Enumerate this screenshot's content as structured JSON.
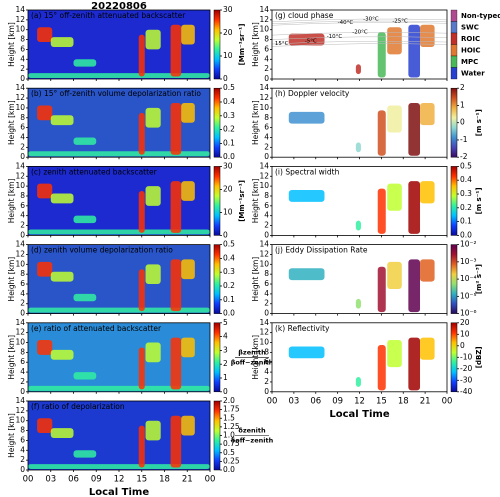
{
  "figure_title": "20220806",
  "chart_data": [
    {
      "type": "heatmap",
      "label": "(a) 15° off-zenith attenuated backscatter",
      "ylabel": "Height [km]",
      "ylim": [
        0,
        14
      ],
      "yticks": [
        0,
        2,
        4,
        6,
        8,
        10,
        12,
        14
      ],
      "xlim": [
        0,
        24
      ],
      "xticks": [
        0,
        3,
        6,
        9,
        12,
        15,
        18,
        21,
        24
      ],
      "background": "#1c2ad0",
      "colorbar": {
        "lim": [
          0,
          30
        ],
        "ticks": [
          0,
          10,
          20,
          30
        ],
        "label": "[Mm⁻¹sr⁻¹]",
        "colors": [
          "#0a0a9a",
          "#1040ff",
          "#00c0ff",
          "#30f0a0",
          "#c0ff30",
          "#ffc000",
          "#ff3000",
          "#a00000"
        ]
      }
    },
    {
      "type": "heatmap",
      "label": "(b) 15° off-zenith volume depolarization ratio",
      "ylabel": "Height [km]",
      "ylim": [
        0,
        14
      ],
      "yticks": [
        0,
        2,
        4,
        6,
        8,
        10,
        12,
        14
      ],
      "xlim": [
        0,
        24
      ],
      "xticks": [
        0,
        3,
        6,
        9,
        12,
        15,
        18,
        21,
        24
      ],
      "background": "#2a55c8",
      "colorbar": {
        "lim": [
          0,
          0.5
        ],
        "ticks": [
          {
            "value": 0,
            "label": "0.0"
          },
          0.1,
          0.2,
          0.3,
          0.4,
          0.5
        ],
        "colors": [
          "#0a0a9a",
          "#1040ff",
          "#00c0ff",
          "#30f0a0",
          "#c0ff30",
          "#ffc000",
          "#ff3000",
          "#a00000"
        ]
      }
    },
    {
      "type": "heatmap",
      "label": "(c) zenith attenuated backscatter",
      "ylabel": "Height [km]",
      "ylim": [
        0,
        14
      ],
      "yticks": [
        0,
        2,
        4,
        6,
        8,
        10,
        12,
        14
      ],
      "xlim": [
        0,
        24
      ],
      "xticks": [
        0,
        3,
        6,
        9,
        12,
        15,
        18,
        21,
        24
      ],
      "background": "#1c2ad0",
      "colorbar": {
        "lim": [
          0,
          30
        ],
        "ticks": [
          0,
          10,
          20,
          30
        ],
        "label": "[Mm⁻¹sr⁻¹]",
        "colors": [
          "#0a0a9a",
          "#1040ff",
          "#00c0ff",
          "#30f0a0",
          "#c0ff30",
          "#ffc000",
          "#ff3000",
          "#a00000"
        ]
      }
    },
    {
      "type": "heatmap",
      "label": "(d) zenith volume depolarization ratio",
      "ylabel": "Height [km]",
      "ylim": [
        0,
        14
      ],
      "yticks": [
        0,
        2,
        4,
        6,
        8,
        10,
        12,
        14
      ],
      "xlim": [
        0,
        24
      ],
      "xticks": [
        0,
        3,
        6,
        9,
        12,
        15,
        18,
        21,
        24
      ],
      "background": "#2a55c8",
      "colorbar": {
        "lim": [
          0,
          0.5
        ],
        "ticks": [
          {
            "value": 0,
            "label": "0.0"
          },
          0.1,
          0.2,
          0.3,
          0.4,
          0.5
        ],
        "colors": [
          "#0a0a9a",
          "#1040ff",
          "#00c0ff",
          "#30f0a0",
          "#c0ff30",
          "#ffc000",
          "#ff3000",
          "#a00000"
        ]
      }
    },
    {
      "type": "heatmap",
      "label": "(e) ratio of attenuated backscatter",
      "ylabel": "Height [km]",
      "ylim": [
        0,
        14
      ],
      "yticks": [
        0,
        2,
        4,
        6,
        8,
        10,
        12,
        14
      ],
      "xlim": [
        0,
        24
      ],
      "xticks": [
        0,
        3,
        6,
        9,
        12,
        15,
        18,
        21,
        24
      ],
      "background": "#2a8cd8",
      "colorbar": {
        "lim": [
          0,
          5
        ],
        "ticks": [
          0,
          1,
          2,
          3,
          4,
          5
        ],
        "label_num": "βzenith",
        "label_den": "βoff−zenith",
        "colors": [
          "#0a0a9a",
          "#1040ff",
          "#00c0ff",
          "#30f0a0",
          "#c0ff30",
          "#ffc000",
          "#ff3000",
          "#a00000"
        ]
      }
    },
    {
      "type": "heatmap",
      "label": "(f) ratio of depolarization",
      "ylabel": "Height [km]",
      "ylim": [
        0,
        14
      ],
      "yticks": [
        0,
        2,
        4,
        6,
        8,
        10,
        12,
        14
      ],
      "xlim": [
        0,
        24
      ],
      "xlabel": "Local Time",
      "background": "#1c3ad0",
      "xticks": [
        {
          "value": 0,
          "label": "00"
        },
        {
          "value": 3,
          "label": "03"
        },
        {
          "value": 6,
          "label": "06"
        },
        {
          "value": 9,
          "label": "09"
        },
        12,
        15,
        18,
        21,
        {
          "value": 24,
          "label": "00"
        }
      ],
      "colorbar": {
        "lim": [
          0,
          2
        ],
        "ticks": [
          {
            "value": 0,
            "label": "0.0"
          },
          0.25,
          {
            "value": 0.5,
            "label": "0.5"
          },
          0.75,
          {
            "value": 1,
            "label": "1.0"
          },
          1.25,
          1.5,
          1.75,
          {
            "value": 2,
            "label": "2.0"
          }
        ],
        "label_num": "δzenith",
        "label_den": "δoff−zenith",
        "colors": [
          "#0a0a9a",
          "#1040ff",
          "#00c0ff",
          "#30f0a0",
          "#c0ff30",
          "#ffc000",
          "#ff3000",
          "#a00000"
        ]
      }
    },
    {
      "type": "heatmap",
      "label": "(g) cloud phase",
      "ylabel": "Height [km]",
      "ylim": [
        0,
        14
      ],
      "yticks": [
        0,
        2,
        4,
        6,
        8,
        10,
        12,
        14
      ],
      "xlim": [
        0,
        24
      ],
      "xticks": [
        0,
        3,
        6,
        9,
        12,
        15,
        18,
        21,
        24
      ],
      "background": "#ffffff",
      "annotations": [
        "-40°C",
        "-30°C",
        "-25°C",
        "-20°C",
        "-10°C",
        "-5°C",
        "15°C"
      ],
      "categories": [
        {
          "name": "Non-typed",
          "color": "#b04a90"
        },
        {
          "name": "SWC",
          "color": "#5878c8"
        },
        {
          "name": "ROIC",
          "color": "#c03028"
        },
        {
          "name": "HOIC",
          "color": "#e07830"
        },
        {
          "name": "MPC",
          "color": "#48b858"
        },
        {
          "name": "Water",
          "color": "#2840d0"
        }
      ]
    },
    {
      "type": "heatmap",
      "label": "(h) Doppler velocity",
      "ylabel": "Height [km]",
      "ylim": [
        0,
        14
      ],
      "yticks": [
        0,
        2,
        4,
        6,
        8,
        10,
        12,
        14
      ],
      "xlim": [
        0,
        24
      ],
      "xticks": [
        0,
        3,
        6,
        9,
        12,
        15,
        18,
        21,
        24
      ],
      "background": "#ffffff",
      "colorbar": {
        "lim": [
          -2,
          2
        ],
        "ticks": [
          -2,
          -1,
          0,
          1,
          2
        ],
        "label": "[m s⁻¹]",
        "colors": [
          "#3a0a64",
          "#4848b8",
          "#4090d0",
          "#90d8d0",
          "#f0f0a0",
          "#f0b040",
          "#d05020",
          "#801010"
        ]
      }
    },
    {
      "type": "heatmap",
      "label": "(i) Spectral width",
      "ylabel": "Height [km]",
      "ylim": [
        0,
        14
      ],
      "yticks": [
        0,
        2,
        4,
        6,
        8,
        10,
        12,
        14
      ],
      "xlim": [
        0,
        24
      ],
      "xticks": [
        0,
        3,
        6,
        9,
        12,
        15,
        18,
        21,
        24
      ],
      "background": "#ffffff",
      "colorbar": {
        "lim": [
          0,
          0.5
        ],
        "ticks": [
          {
            "value": 0,
            "label": "0.0"
          },
          0.1,
          0.2,
          0.3,
          0.4,
          0.5
        ],
        "label": "[m s⁻¹]",
        "colors": [
          "#0a0a9a",
          "#1040ff",
          "#00c0ff",
          "#30f0a0",
          "#c0ff30",
          "#ffc000",
          "#ff3000",
          "#a00000"
        ]
      }
    },
    {
      "type": "heatmap",
      "label": "(j) Eddy Dissipation Rate",
      "ylabel": "Height [km]",
      "ylim": [
        0,
        14
      ],
      "yticks": [
        0,
        2,
        4,
        6,
        8,
        10,
        12,
        14
      ],
      "xlim": [
        0,
        24
      ],
      "xticks": [
        0,
        3,
        6,
        9,
        12,
        15,
        18,
        21,
        24
      ],
      "background": "#ffffff",
      "colorbar": {
        "lim": [
          1e-06,
          0.01
        ],
        "log": true,
        "ticks": [
          {
            "value": 1e-06,
            "label": "10⁻⁶"
          },
          {
            "value": 1e-05,
            "label": "10⁻⁵"
          },
          {
            "value": 0.0001,
            "label": "10⁻⁴"
          },
          {
            "value": 0.001,
            "label": "10⁻³"
          },
          {
            "value": 0.01,
            "label": "10⁻²"
          }
        ],
        "label": "[m² s⁻³]",
        "colors": [
          "#2a0a5a",
          "#3050c0",
          "#30b0c0",
          "#90e070",
          "#f0d040",
          "#e06020",
          "#a01030",
          "#600050"
        ]
      }
    },
    {
      "type": "heatmap",
      "label": "(k) Reflectivity",
      "ylabel": "Height [km]",
      "ylim": [
        0,
        14
      ],
      "yticks": [
        0,
        2,
        4,
        6,
        8,
        10,
        12,
        14
      ],
      "xlim": [
        0,
        24
      ],
      "xlabel": "Local Time",
      "background": "#ffffff",
      "xticks": [
        {
          "value": 0,
          "label": "00"
        },
        {
          "value": 3,
          "label": "03"
        },
        {
          "value": 6,
          "label": "06"
        },
        {
          "value": 9,
          "label": "09"
        },
        12,
        15,
        18,
        21,
        {
          "value": 24,
          "label": "00"
        }
      ],
      "colorbar": {
        "lim": [
          -40,
          20
        ],
        "ticks": [
          -40,
          -30,
          -20,
          -10,
          0,
          10,
          20
        ],
        "label": "[dBZ]",
        "colors": [
          "#0a0a9a",
          "#1040ff",
          "#00c0ff",
          "#30f0a0",
          "#c0ff30",
          "#ffc000",
          "#ff3000",
          "#a00000"
        ]
      }
    }
  ]
}
